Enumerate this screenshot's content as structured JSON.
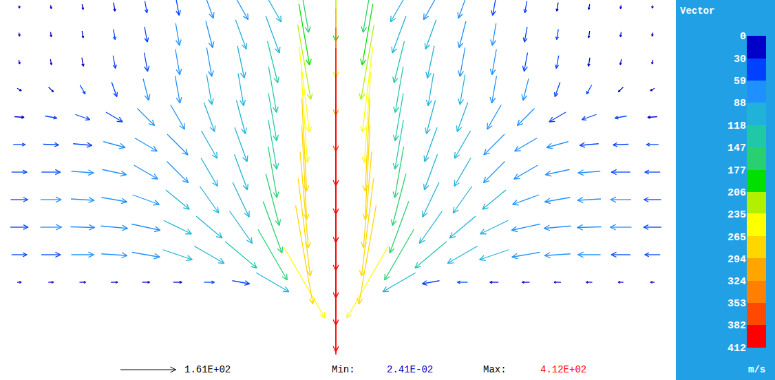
{
  "chart_data": {
    "type": "quiver",
    "x": [
      28,
      74,
      120,
      166,
      212,
      258,
      304,
      350,
      396,
      442,
      488,
      534,
      580,
      626,
      672,
      718,
      764,
      810,
      856,
      902,
      948
    ],
    "y": [
      25,
      65,
      105,
      145,
      185,
      225,
      265,
      305,
      345,
      385,
      425,
      465,
      505
    ],
    "u": [
      [
        null,
        null,
        null,
        null,
        null,
        null,
        null,
        null,
        null,
        null,
        0,
        null,
        null,
        null,
        null,
        null,
        null,
        null,
        null,
        null,
        null
      ],
      [
        null,
        null,
        null,
        null,
        null,
        null,
        null,
        null,
        null,
        null,
        0,
        null,
        null,
        null,
        null,
        null,
        null,
        null,
        null,
        null,
        null
      ],
      [
        12,
        15,
        18,
        20,
        22,
        25,
        30,
        50,
        95,
        120,
        0,
        -120,
        -95,
        -50,
        -30,
        -25,
        -22,
        -20,
        -18,
        -15,
        -12
      ],
      [
        45,
        56,
        66,
        75,
        81,
        85,
        87,
        92,
        85,
        50,
        0,
        -50,
        -85,
        -92,
        -87,
        -85,
        -81,
        -75,
        -66,
        -56,
        -45
      ],
      [
        52,
        62,
        70,
        78,
        83,
        81,
        75,
        66,
        55,
        35,
        0,
        -35,
        -55,
        -66,
        -75,
        -81,
        -83,
        -78,
        -70,
        -62,
        -52
      ],
      [
        50,
        60,
        68,
        74,
        77,
        68,
        55,
        48,
        39,
        24,
        0,
        -24,
        -39,
        -48,
        -55,
        -68,
        -77,
        -74,
        -68,
        -60,
        -50
      ],
      [
        45,
        55,
        65,
        70,
        69,
        62,
        48,
        38,
        26,
        14,
        0,
        -14,
        -26,
        -38,
        -48,
        -62,
        -69,
        -70,
        -65,
        -55,
        -45
      ],
      [
        35,
        45,
        55,
        63,
        65,
        60,
        46,
        36,
        25,
        14,
        0,
        -14,
        -25,
        -36,
        -46,
        -60,
        -65,
        -63,
        -55,
        -45,
        -35
      ],
      [
        28,
        34,
        42,
        48,
        50,
        41,
        31,
        26,
        24,
        18,
        0,
        -18,
        -24,
        -26,
        -31,
        -41,
        -50,
        -48,
        -42,
        -34,
        -28
      ],
      [
        12,
        14,
        15,
        15,
        16,
        14,
        15,
        16,
        23,
        30,
        0,
        -30,
        -23,
        -16,
        -15,
        -14,
        -16,
        -15,
        -15,
        -14,
        -12
      ],
      [
        2,
        3,
        4,
        7,
        10,
        13,
        15,
        20,
        30,
        38,
        0,
        -38,
        -30,
        -20,
        -15,
        -13,
        -10,
        -7,
        -4,
        -3,
        -2
      ],
      [
        2,
        2,
        3,
        5,
        8,
        11,
        20,
        31,
        40,
        31,
        0,
        -31,
        -40,
        -31,
        -20,
        -11,
        -8,
        -5,
        -3,
        -2,
        -2
      ],
      [
        1,
        2,
        3,
        4,
        6,
        9,
        24,
        42,
        50,
        26,
        0,
        -26,
        -50,
        -42,
        -24,
        -9,
        -6,
        -4,
        -3,
        -2,
        -1
      ]
    ],
    "v": [
      [
        null,
        null,
        null,
        null,
        null,
        null,
        null,
        null,
        null,
        null,
        -380,
        null,
        null,
        null,
        null,
        null,
        null,
        null,
        null,
        null,
        null
      ],
      [
        null,
        null,
        null,
        null,
        null,
        null,
        null,
        null,
        null,
        null,
        -395,
        null,
        null,
        null,
        null,
        null,
        null,
        null,
        null,
        null,
        null
      ],
      [
        0,
        0,
        0,
        0,
        0,
        0,
        0,
        -9,
        -55,
        -208,
        -405,
        -208,
        -55,
        -9,
        0,
        0,
        0,
        0,
        0,
        0,
        0
      ],
      [
        0,
        0,
        0,
        -5,
        -14,
        -29,
        -50,
        -77,
        -147,
        -286,
        -410,
        -286,
        -147,
        -77,
        -50,
        -29,
        -14,
        -5,
        0,
        0,
        0
      ],
      [
        0,
        0,
        -2,
        -7,
        -18,
        -39,
        -63,
        -94,
        -150,
        -283,
        -412,
        -283,
        -150,
        -94,
        -63,
        -39,
        -18,
        -7,
        -2,
        0,
        0
      ],
      [
        0,
        0,
        -4,
        -13,
        -28,
        -56,
        -78,
        -101,
        -150,
        -279,
        -412,
        -279,
        -150,
        -101,
        -78,
        -56,
        -28,
        -13,
        -4,
        0,
        0
      ],
      [
        0,
        0,
        -5,
        -15,
        -40,
        -62,
        -82,
        -103,
        -148,
        -275,
        -410,
        -275,
        -148,
        -103,
        -82,
        -62,
        -40,
        -15,
        -5,
        0,
        0
      ],
      [
        0,
        -2,
        -5,
        -17,
        -38,
        -60,
        -80,
        -99,
        -143,
        -270,
        -405,
        -270,
        -143,
        -99,
        -80,
        -60,
        -38,
        -17,
        -5,
        -2,
        0
      ],
      [
        -2,
        -6,
        -15,
        -28,
        -50,
        -71,
        -85,
        -97,
        -138,
        -264,
        -400,
        -264,
        -138,
        -97,
        -85,
        -71,
        -50,
        -28,
        -15,
        -6,
        -2
      ],
      [
        -7,
        -14,
        -26,
        -42,
        -63,
        -79,
        -87,
        -94,
        -133,
        -248,
        -360,
        -248,
        -133,
        -94,
        -87,
        -79,
        -63,
        -42,
        -26,
        -14,
        -7
      ],
      [
        -12,
        -16,
        -25,
        -37,
        -54,
        -74,
        -84,
        -93,
        -121,
        -217,
        -310,
        -217,
        -121,
        -93,
        -84,
        -74,
        -54,
        -37,
        -25,
        -16,
        -12
      ],
      [
        -10,
        -14,
        -20,
        -30,
        -44,
        -64,
        -77,
        -85,
        -108,
        -177,
        -250,
        -177,
        -108,
        -85,
        -77,
        -64,
        -44,
        -30,
        -20,
        -14,
        -10
      ],
      [
        -8,
        -10,
        -15,
        -25,
        -34,
        -49,
        -66,
        -74,
        -87,
        -148,
        -200,
        -148,
        -87,
        -74,
        -66,
        -49,
        -34,
        -25,
        -15,
        -10,
        -8
      ]
    ],
    "xlim": [
      0,
      980
    ],
    "ylim": [
      0,
      515
    ],
    "tick_labels": false,
    "grid": false,
    "reference": {
      "value": 161,
      "label": "1.61E+02"
    },
    "min": {
      "text": "Min:",
      "value": 0.0241,
      "label": "2.41E-02"
    },
    "max": {
      "text": "Max:",
      "value": 412,
      "label": "4.12E+02"
    },
    "colorbar": {
      "title": "Vector",
      "unit": "m/s",
      "range": [
        0,
        412
      ],
      "ticks": [
        0,
        30,
        59,
        88,
        118,
        147,
        177,
        206,
        235,
        265,
        294,
        324,
        353,
        382,
        412
      ],
      "colors": [
        "#0000c8",
        "#0040ff",
        "#1e90ff",
        "#20b2d8",
        "#20c8a8",
        "#28d070",
        "#00e000",
        "#b0f000",
        "#ffff00",
        "#ffd700",
        "#ffa500",
        "#ff8000",
        "#ff4800",
        "#ff0000"
      ]
    }
  }
}
